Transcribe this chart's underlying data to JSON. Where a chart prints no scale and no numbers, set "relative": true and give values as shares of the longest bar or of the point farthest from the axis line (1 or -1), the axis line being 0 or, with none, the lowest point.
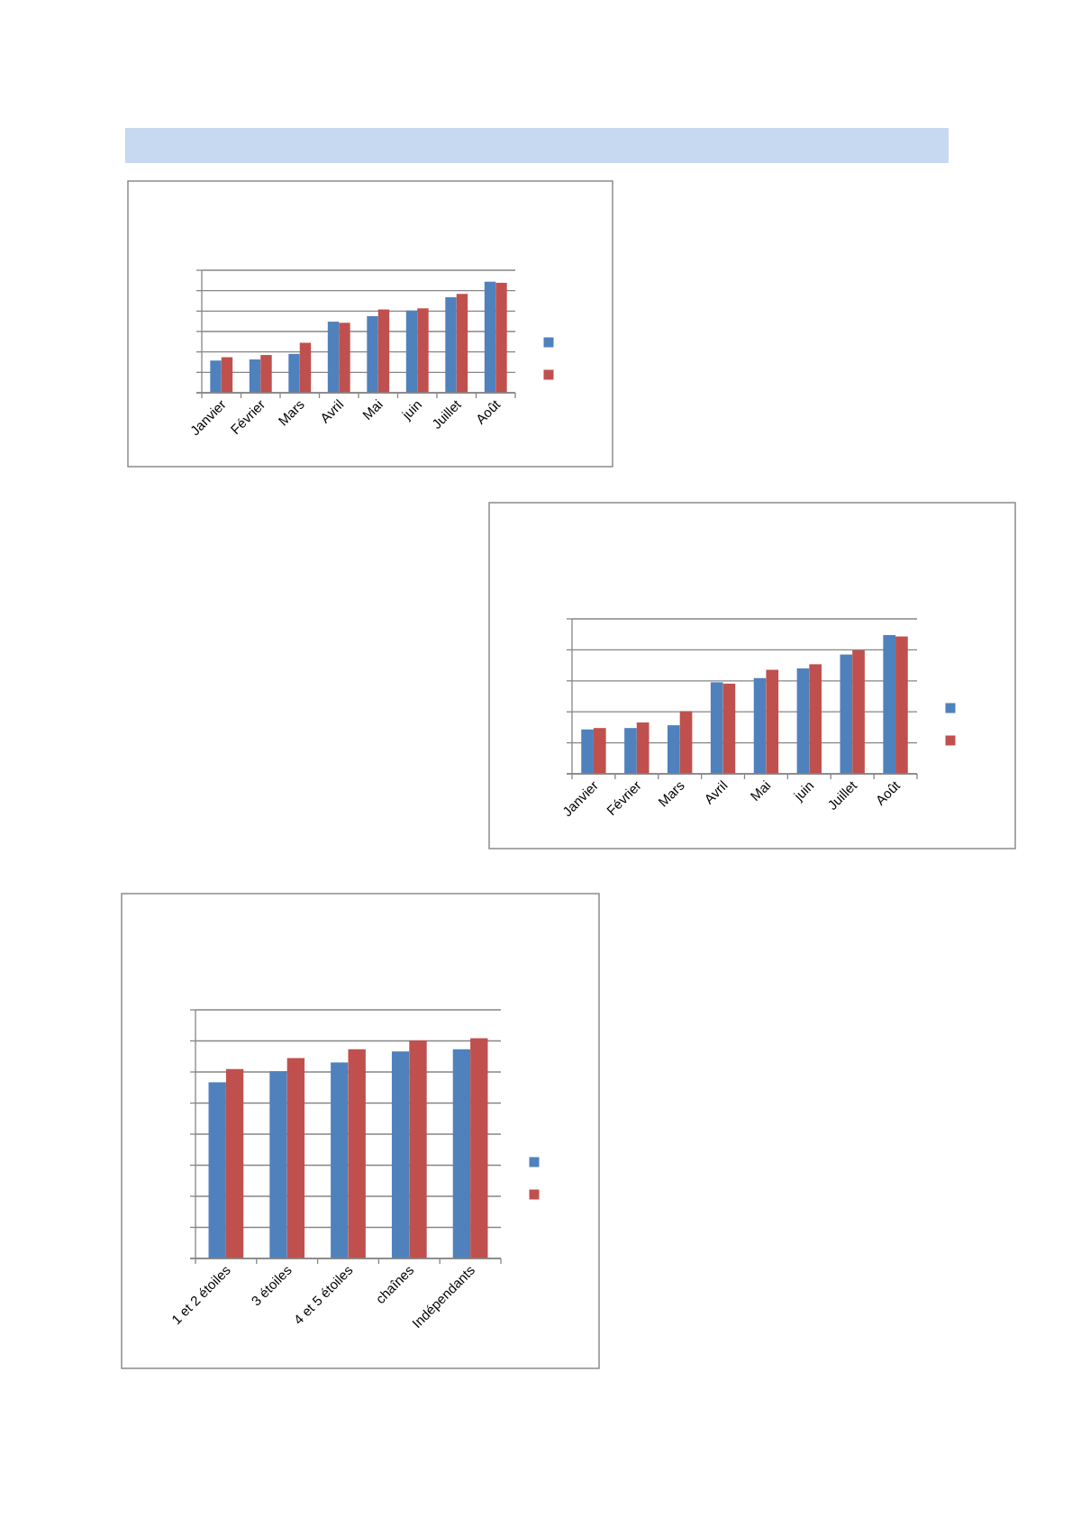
{
  "chart_data": [
    {
      "type": "bar",
      "relative": true,
      "grid": "y",
      "categories": [
        "Janvier",
        "Février",
        "Mars",
        "Avril",
        "Mai",
        "juin",
        "Juillet",
        "Août"
      ],
      "series": [
        {
          "color": "#4f81bd",
          "values": [
            0.29,
            0.3,
            0.35,
            0.64,
            0.69,
            0.74,
            0.86,
            1
          ]
        },
        {
          "color": "#c0504d",
          "values": [
            0.32,
            0.34,
            0.45,
            0.63,
            0.75,
            0.76,
            0.89,
            0.99
          ]
        }
      ]
    },
    {
      "type": "bar",
      "relative": true,
      "grid": "y",
      "categories": [
        "Janvier",
        "Février",
        "Mars",
        "Avril",
        "Mai",
        "juin",
        "Juillet",
        "Août"
      ],
      "series": [
        {
          "color": "#4f81bd",
          "values": [
            0.32,
            0.33,
            0.35,
            0.66,
            0.69,
            0.76,
            0.86,
            1
          ]
        },
        {
          "color": "#c0504d",
          "values": [
            0.33,
            0.37,
            0.45,
            0.65,
            0.75,
            0.79,
            0.89,
            0.99
          ]
        }
      ]
    },
    {
      "type": "bar",
      "relative": true,
      "grid": "y",
      "categories": [
        "1 et 2 étoiles",
        "3 étoiles",
        "4 et 5 étoiles",
        "chaînes",
        "Indépendants"
      ],
      "series": [
        {
          "color": "#4f81bd",
          "values": [
            0.8,
            0.85,
            0.89,
            0.94,
            0.95
          ]
        },
        {
          "color": "#c0504d",
          "values": [
            0.86,
            0.91,
            0.95,
            0.99,
            1
          ]
        }
      ]
    }
  ]
}
